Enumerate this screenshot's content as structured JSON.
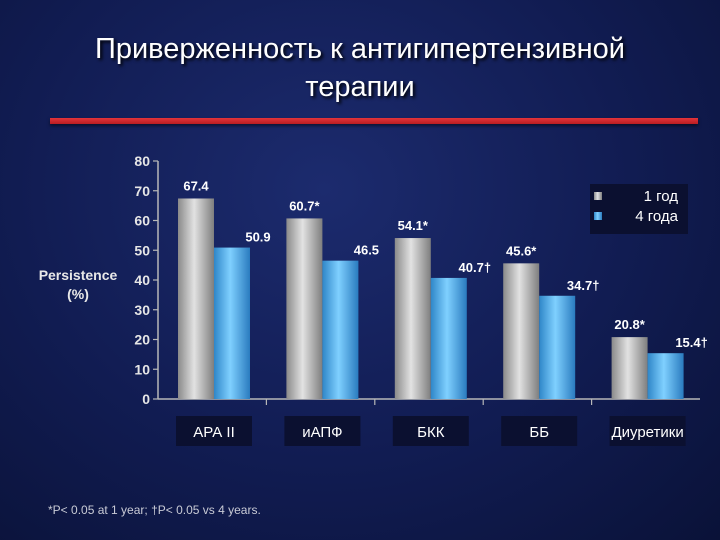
{
  "slide": {
    "title_line1": "Приверженность к антигипертензивной",
    "title_line2": "терапии",
    "footnote": "*P< 0.05 at 1 year; †P< 0.05 vs 4 years."
  },
  "chart_data": {
    "type": "bar",
    "ylabel_line1": "Persistence",
    "ylabel_line2": "(%)",
    "ylim": [
      0,
      80
    ],
    "yticks": [
      "0",
      "10",
      "20",
      "30",
      "40",
      "50",
      "60",
      "70",
      "80"
    ],
    "categories": [
      "АРА II",
      "иАПФ",
      "БКК",
      "ББ",
      "Диуретики"
    ],
    "series": [
      {
        "name": "1 год",
        "values": [
          67.4,
          60.7,
          54.1,
          45.6,
          20.8
        ],
        "labels": [
          "67.4",
          "60.7*",
          "54.1*",
          "45.6*",
          "20.8*"
        ],
        "color": "#b8b8b8"
      },
      {
        "name": "4 года",
        "values": [
          50.9,
          46.5,
          40.7,
          34.7,
          15.4
        ],
        "labels": [
          "50.9",
          "46.5",
          "40.7†",
          "34.7†",
          "15.4†"
        ],
        "color": "#4eaee6"
      }
    ],
    "legend_position": "top-right",
    "grid": false
  }
}
